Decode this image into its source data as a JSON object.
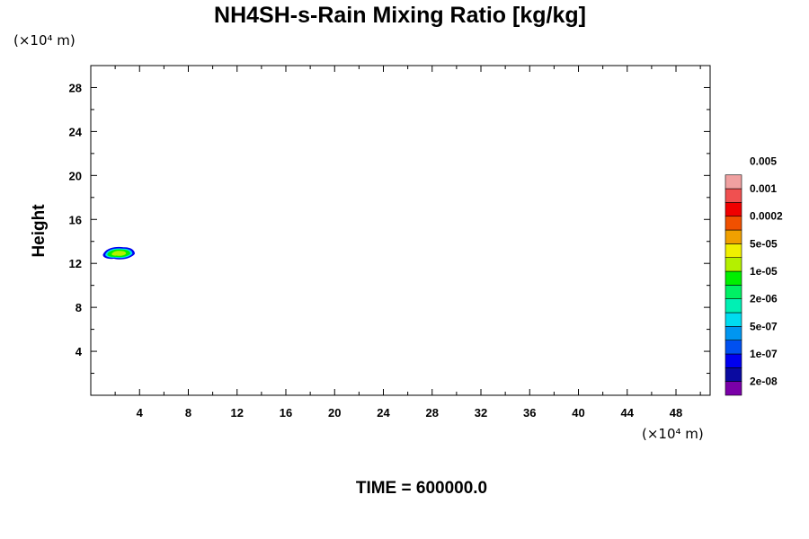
{
  "chart_data": {
    "type": "heatmap",
    "title": "NH4SH-s-Rain Mixing Ratio [kg/kg]",
    "ylabel": "Height",
    "x_units": "(×10⁴ m)",
    "y_units": "(×10⁴ m)",
    "xlim": [
      0,
      50.8
    ],
    "ylim": [
      0,
      30
    ],
    "x_ticks": [
      "4",
      "8",
      "12",
      "16",
      "20",
      "24",
      "28",
      "32",
      "36",
      "40",
      "44",
      "48"
    ],
    "y_ticks": [
      "4",
      "8",
      "12",
      "16",
      "20",
      "24",
      "28"
    ],
    "colorbar": {
      "colors": [
        "#7a00a8",
        "#0a0aa0",
        "#0000f0",
        "#0050f0",
        "#0096f0",
        "#00dcf0",
        "#00f0b4",
        "#00f064",
        "#00f000",
        "#b4f000",
        "#f0f000",
        "#f0a000",
        "#f05000",
        "#f00000",
        "#f05050",
        "#f0a0a0"
      ],
      "labels": [
        "2e-08",
        "1e-07",
        "5e-07",
        "2e-06",
        "1e-05",
        "5e-05",
        "0.0002",
        "0.001",
        "0.005"
      ]
    },
    "features": [
      {
        "x_range": [
          1.0,
          3.6
        ],
        "y_range": [
          12.3,
          13.5
        ],
        "max_level_label": "5e-05"
      }
    ],
    "grid": false,
    "legend": "right colorbar"
  },
  "footer": {
    "time_label": "TIME = 600000.0"
  }
}
